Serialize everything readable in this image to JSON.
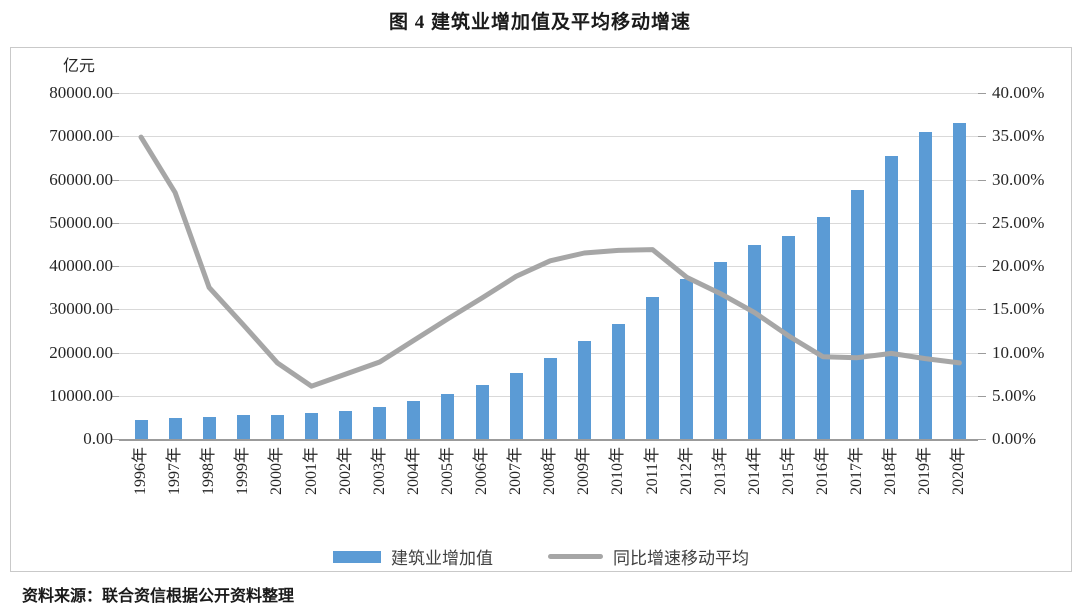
{
  "title": "图 4  建筑业增加值及平均移动增速",
  "source_note": "资料来源：联合资信根据公开资料整理",
  "colors": {
    "bar": "#5B9BD5",
    "line": "#A6A6A6",
    "gridline": "#D9D9D9",
    "axis": "#9B9B9B"
  },
  "chart_data": {
    "type": "bar",
    "combo": "bar+line",
    "title": "图 4  建筑业增加值及平均移动增速",
    "unit_label": "亿元",
    "categories": [
      "1996年",
      "1997年",
      "1998年",
      "1999年",
      "2000年",
      "2001年",
      "2002年",
      "2003年",
      "2004年",
      "2005年",
      "2006年",
      "2007年",
      "2008年",
      "2009年",
      "2010年",
      "2011年",
      "2012年",
      "2013年",
      "2014年",
      "2015年",
      "2016年",
      "2017年",
      "2018年",
      "2019年",
      "2020年"
    ],
    "series": [
      {
        "name": "建筑业增加值",
        "type": "bar",
        "axis": "left",
        "color": "#5B9BD5",
        "values": [
          4500,
          4800,
          5200,
          5500,
          5500,
          5900,
          6500,
          7500,
          8700,
          10400,
          12400,
          15300,
          18700,
          22700,
          26700,
          32900,
          36900,
          40900,
          44900,
          47000,
          51300,
          57500,
          65500,
          70900,
          73000
        ]
      },
      {
        "name": "同比增速移动平均",
        "type": "line",
        "axis": "right",
        "color": "#A6A6A6",
        "values": [
          34.9,
          28.5,
          17.5,
          13.2,
          8.8,
          6.1,
          7.5,
          8.9,
          11.4,
          13.9,
          16.3,
          18.8,
          20.6,
          21.5,
          21.8,
          21.9,
          18.7,
          16.8,
          14.6,
          11.9,
          9.5,
          9.4,
          9.9,
          9.3,
          8.8
        ]
      }
    ],
    "left_axis": {
      "min": 0,
      "max": 80000,
      "step": 10000,
      "tick_labels": [
        "0.00",
        "10000.00",
        "20000.00",
        "30000.00",
        "40000.00",
        "50000.00",
        "60000.00",
        "70000.00",
        "80000.00"
      ]
    },
    "right_axis": {
      "min": 0,
      "max": 40,
      "step": 5,
      "tick_labels": [
        "0.00%",
        "5.00%",
        "10.00%",
        "15.00%",
        "20.00%",
        "25.00%",
        "30.00%",
        "35.00%",
        "40.00%"
      ]
    },
    "grid": "horizontal",
    "legend_position": "bottom"
  }
}
